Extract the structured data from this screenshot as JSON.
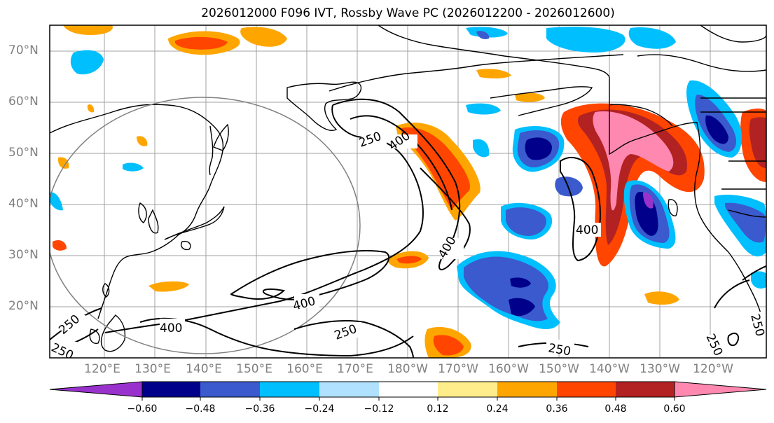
{
  "title": "2026012000 F096 IVT, Rossby Wave PC (2026012200 - 2026012600)",
  "latitude_labels": [
    "70°N",
    "60°N",
    "50°N",
    "40°N",
    "30°N",
    "20°N"
  ],
  "longitude_labels": [
    "120°E",
    "130°E",
    "140°E",
    "150°E",
    "160°E",
    "170°E",
    "180°W",
    "170°W",
    "160°W",
    "150°W",
    "140°W",
    "130°W",
    "120°W"
  ],
  "colorbar": {
    "ticks": [
      "−0.60",
      "−0.48",
      "−0.36",
      "−0.24",
      "−0.12",
      "0.12",
      "0.24",
      "0.36",
      "0.48",
      "0.60"
    ],
    "colors": [
      "#9932cc",
      "#00008b",
      "#3a5acd",
      "#00bfff",
      "#b0e2ff",
      "#ffffff",
      "#ffec8b",
      "#ffa500",
      "#ff4500",
      "#b22222",
      "#ff88b0"
    ]
  },
  "contours": {
    "labels": [
      "250",
      "400",
      "400",
      "400",
      "400",
      "250",
      "250",
      "400",
      "250",
      "250",
      "250",
      "250"
    ],
    "levels": [
      250,
      400
    ]
  }
}
